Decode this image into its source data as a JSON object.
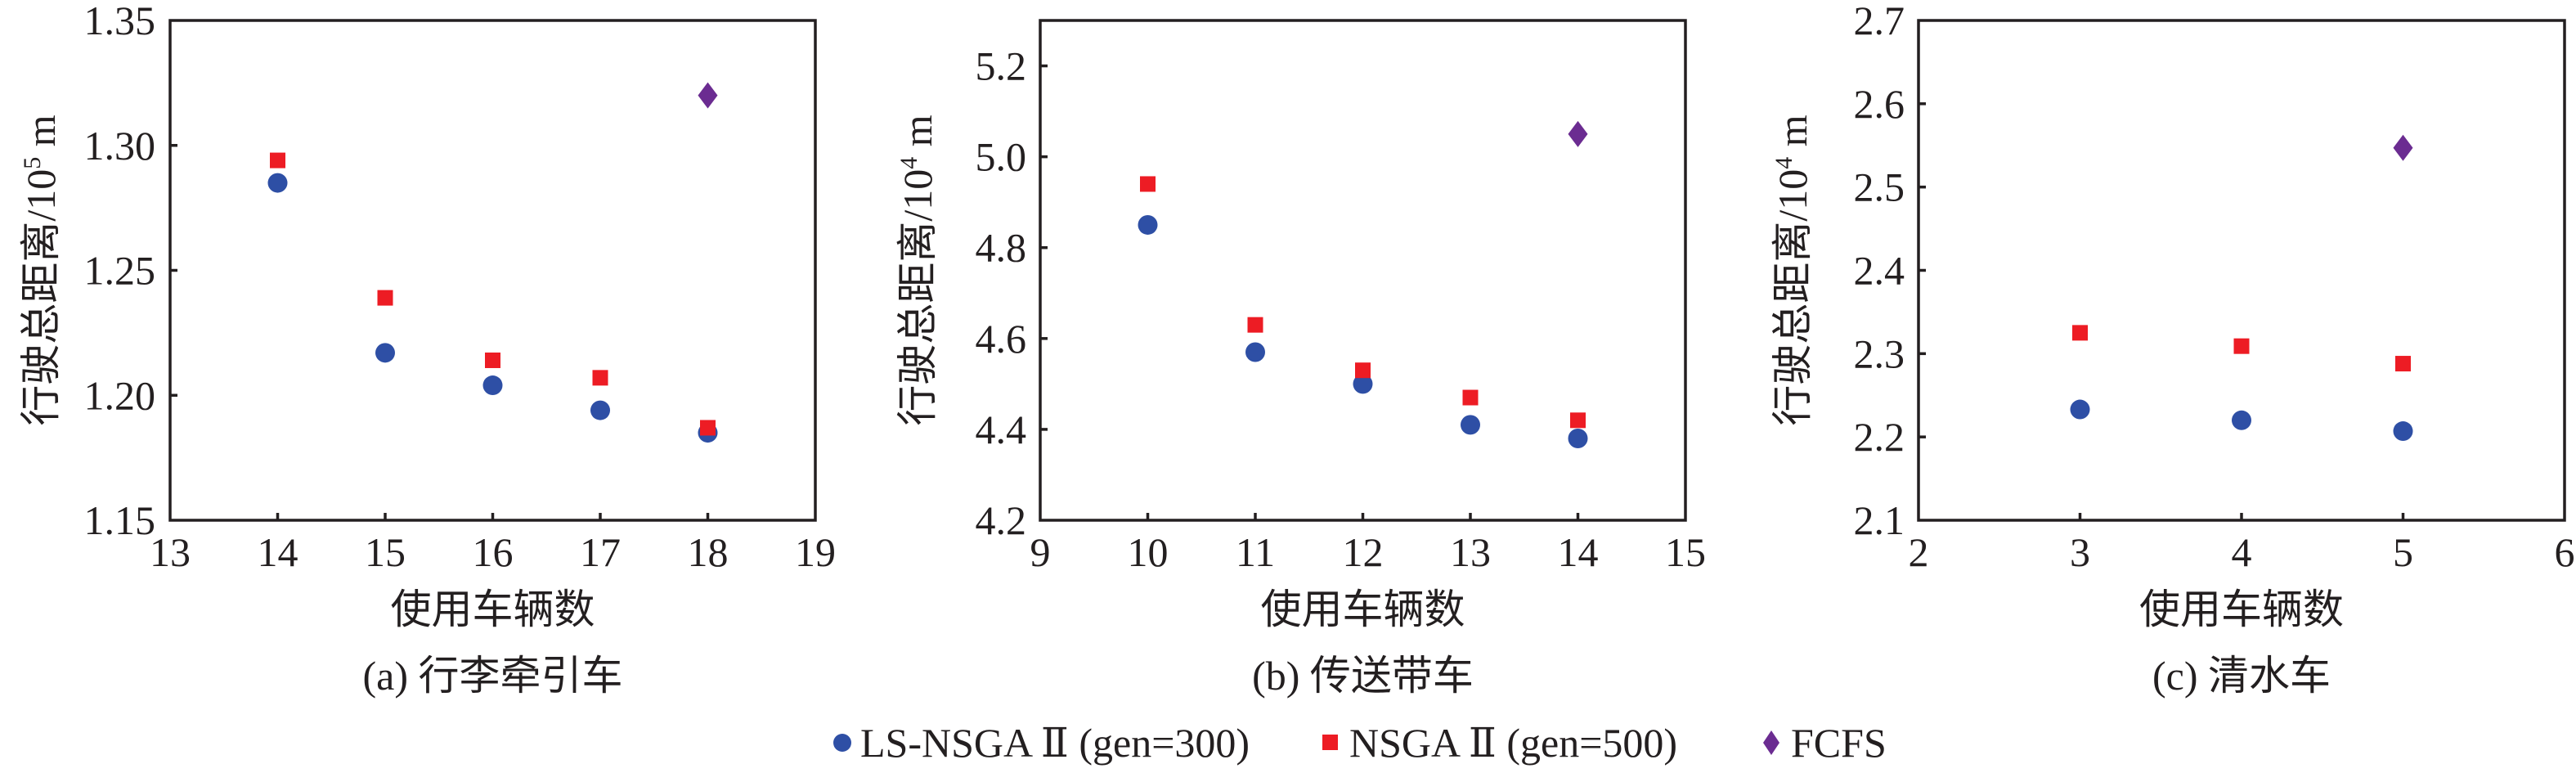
{
  "chart_data": [
    {
      "type": "scatter",
      "panel_id": "a",
      "caption": "(a) 行李牵引车",
      "xlabel": "使用车辆数",
      "ylabel_main": "行驶总距离/10",
      "ylabel_exp": "5",
      "ylabel_unit": " m",
      "xlim": [
        13,
        19
      ],
      "ylim": [
        1.15,
        1.35
      ],
      "xticks": [
        13,
        14,
        15,
        16,
        17,
        18,
        19
      ],
      "xtick_labels": [
        "13",
        "14",
        "15",
        "16",
        "17",
        "18",
        "19"
      ],
      "yticks": [
        1.15,
        1.2,
        1.25,
        1.3,
        1.35
      ],
      "ytick_labels": [
        "1.15",
        "1.20",
        "1.25",
        "1.30",
        "1.35"
      ],
      "grid": false,
      "series": [
        {
          "name": "LS-NSGA Ⅱ (gen=300)",
          "marker": "circle",
          "x": [
            14,
            15,
            16,
            17,
            18
          ],
          "y": [
            1.285,
            1.217,
            1.204,
            1.194,
            1.185
          ]
        },
        {
          "name": "NSGA Ⅱ (gen=500)",
          "marker": "square",
          "x": [
            14,
            15,
            16,
            17,
            18
          ],
          "y": [
            1.294,
            1.239,
            1.214,
            1.207,
            1.187
          ]
        },
        {
          "name": "FCFS",
          "marker": "diamond",
          "x": [
            18
          ],
          "y": [
            1.32
          ]
        }
      ]
    },
    {
      "type": "scatter",
      "panel_id": "b",
      "caption": "(b) 传送带车",
      "xlabel": "使用车辆数",
      "ylabel_main": "行驶总距离/10",
      "ylabel_exp": "4",
      "ylabel_unit": " m",
      "xlim": [
        9,
        15
      ],
      "ylim": [
        4.2,
        5.3
      ],
      "xticks": [
        9,
        10,
        11,
        12,
        13,
        14,
        15
      ],
      "xtick_labels": [
        "9",
        "10",
        "11",
        "12",
        "13",
        "14",
        "15"
      ],
      "yticks": [
        4.2,
        4.4,
        4.6,
        4.8,
        5.0,
        5.2
      ],
      "ytick_labels": [
        "4.2",
        "4.4",
        "4.6",
        "4.8",
        "5.0",
        "5.2"
      ],
      "grid": false,
      "series": [
        {
          "name": "LS-NSGA Ⅱ (gen=300)",
          "marker": "circle",
          "x": [
            10,
            11,
            12,
            13,
            14
          ],
          "y": [
            4.85,
            4.57,
            4.5,
            4.41,
            4.38
          ]
        },
        {
          "name": "NSGA Ⅱ (gen=500)",
          "marker": "square",
          "x": [
            10,
            11,
            12,
            13,
            14
          ],
          "y": [
            4.94,
            4.63,
            4.53,
            4.47,
            4.42
          ]
        },
        {
          "name": "FCFS",
          "marker": "diamond",
          "x": [
            14
          ],
          "y": [
            5.05
          ]
        }
      ]
    },
    {
      "type": "scatter",
      "panel_id": "c",
      "caption": "(c) 清水车",
      "xlabel": "使用车辆数",
      "ylabel_main": "行驶总距离/10",
      "ylabel_exp": "4",
      "ylabel_unit": " m",
      "xlim": [
        2,
        6
      ],
      "ylim": [
        2.1,
        2.7
      ],
      "xticks": [
        2,
        3,
        4,
        5,
        6
      ],
      "xtick_labels": [
        "2",
        "3",
        "4",
        "5",
        "6"
      ],
      "yticks": [
        2.1,
        2.2,
        2.3,
        2.4,
        2.5,
        2.6,
        2.7
      ],
      "ytick_labels": [
        "2.1",
        "2.2",
        "2.3",
        "2.4",
        "2.5",
        "2.6",
        "2.7"
      ],
      "grid": false,
      "series": [
        {
          "name": "LS-NSGA Ⅱ (gen=300)",
          "marker": "circle",
          "x": [
            3,
            4,
            5
          ],
          "y": [
            2.233,
            2.22,
            2.207
          ]
        },
        {
          "name": "NSGA Ⅱ (gen=500)",
          "marker": "square",
          "x": [
            3,
            4,
            5
          ],
          "y": [
            2.325,
            2.309,
            2.288
          ]
        },
        {
          "name": "FCFS",
          "marker": "diamond",
          "x": [
            5
          ],
          "y": [
            2.547
          ]
        }
      ]
    }
  ],
  "legend": {
    "position": "bottom-center",
    "items": [
      {
        "label": "LS-NSGA Ⅱ (gen=300)",
        "marker": "circle",
        "color": "#2e4fa5"
      },
      {
        "label": "NSGA Ⅱ (gen=500)",
        "marker": "square",
        "color": "#ed1c24"
      },
      {
        "label": "FCFS",
        "marker": "diamond",
        "color": "#6b2c91"
      }
    ]
  },
  "colors": {
    "circle": "#2e4fa5",
    "square": "#ed1c24",
    "diamond": "#6b2c91",
    "axis": "#231f20"
  }
}
